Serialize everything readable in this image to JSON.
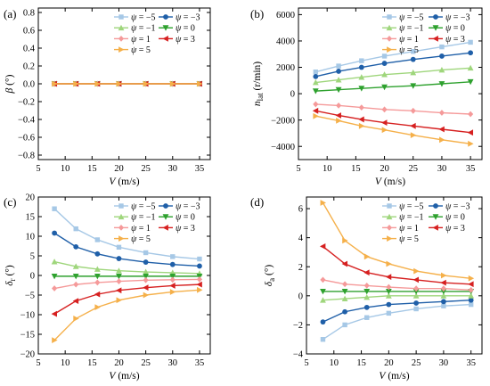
{
  "figure": {
    "x_values": [
      8,
      12,
      16,
      20,
      25,
      30,
      35
    ],
    "series_style": [
      {
        "name": "ψ = −5",
        "color": "#a6c8e6",
        "marker": "square"
      },
      {
        "name": "ψ = −3",
        "color": "#1f5fa8",
        "marker": "circle"
      },
      {
        "name": "ψ = −1",
        "color": "#9fd67c",
        "marker": "triangle-up"
      },
      {
        "name": "ψ = 0",
        "color": "#2ea12e",
        "marker": "triangle-down"
      },
      {
        "name": "ψ = 1",
        "color": "#f59a9a",
        "marker": "diamond"
      },
      {
        "name": "ψ = 3",
        "color": "#d62020",
        "marker": "triangle-left"
      },
      {
        "name": "ψ = 5",
        "color": "#f5b04a",
        "marker": "triangle-right"
      }
    ]
  },
  "chart_data": [
    {
      "type": "line",
      "panel": "(a)",
      "ylabel": "β (°)",
      "xlabel": "V (m/s)",
      "xlim": [
        5,
        37
      ],
      "ylim": [
        -0.85,
        0.85
      ],
      "xticks": [
        5,
        10,
        15,
        20,
        25,
        30,
        35
      ],
      "yticks": [
        -0.8,
        -0.6,
        -0.4,
        -0.2,
        0.0,
        0.2,
        0.4,
        0.6,
        0.8
      ],
      "ytick_labels": [
        "−0.8",
        "−0.6",
        "−0.4",
        "−0.2",
        "0.0",
        "0.2",
        "0.4",
        "0.6",
        "0.8"
      ],
      "legend": "top-right, 2 columns",
      "x": [
        8,
        12,
        16,
        20,
        25,
        30,
        35
      ],
      "series": [
        {
          "name": "ψ = −5",
          "values": [
            0,
            0,
            0,
            0,
            0,
            0,
            0
          ]
        },
        {
          "name": "ψ = −3",
          "values": [
            0,
            0,
            0,
            0,
            0,
            0,
            0
          ]
        },
        {
          "name": "ψ = −1",
          "values": [
            0,
            0,
            0,
            0,
            0,
            0,
            0
          ]
        },
        {
          "name": "ψ = 0",
          "values": [
            0,
            0,
            0,
            0,
            0,
            0,
            0
          ]
        },
        {
          "name": "ψ = 1",
          "values": [
            0,
            0,
            0,
            0,
            0,
            0,
            0
          ]
        },
        {
          "name": "ψ = 3",
          "values": [
            0,
            0,
            0,
            0,
            0,
            0,
            0
          ]
        },
        {
          "name": "ψ = 5",
          "values": [
            0,
            0,
            0,
            0,
            0,
            0,
            0
          ]
        }
      ]
    },
    {
      "type": "line",
      "panel": "(b)",
      "ylabel": "n_lat (r/min)",
      "xlabel": "V (m/s)",
      "xlim": [
        5,
        37
      ],
      "ylim": [
        -5000,
        6500
      ],
      "xticks": [
        5,
        10,
        15,
        20,
        25,
        30,
        35
      ],
      "yticks": [
        -4000,
        -2000,
        0,
        2000,
        4000,
        6000
      ],
      "ytick_labels": [
        "−4000",
        "−2000",
        "0",
        "2000",
        "4000",
        "6000"
      ],
      "legend": "top-right, 2 columns",
      "x": [
        8,
        12,
        16,
        20,
        25,
        30,
        35
      ],
      "series": [
        {
          "name": "ψ = −5",
          "values": [
            1650,
            2100,
            2500,
            2850,
            3200,
            3550,
            3900
          ]
        },
        {
          "name": "ψ = −3",
          "values": [
            1300,
            1700,
            2000,
            2300,
            2600,
            2850,
            3100
          ]
        },
        {
          "name": "ψ = −1",
          "values": [
            850,
            1050,
            1250,
            1450,
            1600,
            1800,
            1950
          ]
        },
        {
          "name": "ψ = 0",
          "values": [
            200,
            300,
            400,
            500,
            600,
            750,
            900
          ]
        },
        {
          "name": "ψ = 1",
          "values": [
            -800,
            -900,
            -1050,
            -1200,
            -1300,
            -1450,
            -1550
          ]
        },
        {
          "name": "ψ = 3",
          "values": [
            -1300,
            -1650,
            -1950,
            -2200,
            -2450,
            -2700,
            -2950
          ]
        },
        {
          "name": "ψ = 5",
          "values": [
            -1700,
            -2050,
            -2450,
            -2750,
            -3150,
            -3500,
            -3800
          ]
        }
      ]
    },
    {
      "type": "line",
      "panel": "(c)",
      "ylabel": "δ_r (°)",
      "xlabel": "V (m/s)",
      "xlim": [
        5,
        37
      ],
      "ylim": [
        -20,
        20
      ],
      "xticks": [
        5,
        10,
        15,
        20,
        25,
        30,
        35
      ],
      "yticks": [
        -20,
        -15,
        -10,
        -5,
        0,
        5,
        10,
        15,
        20
      ],
      "ytick_labels": [
        "−20",
        "−15",
        "−10",
        "−5",
        "0",
        "5",
        "10",
        "15",
        "20"
      ],
      "legend": "top-right, 2 columns",
      "x": [
        8,
        12,
        16,
        20,
        25,
        30,
        35
      ],
      "series": [
        {
          "name": "ψ = −5",
          "values": [
            17,
            11.9,
            9.1,
            7.2,
            5.8,
            4.8,
            4.2
          ]
        },
        {
          "name": "ψ = −3",
          "values": [
            10.8,
            7.3,
            5.5,
            4.3,
            3.4,
            2.8,
            2.4
          ]
        },
        {
          "name": "ψ = −1",
          "values": [
            3.5,
            2.3,
            1.6,
            1.2,
            0.9,
            0.7,
            0.5
          ]
        },
        {
          "name": "ψ = 0",
          "values": [
            -0.2,
            -0.2,
            -0.2,
            -0.2,
            -0.2,
            -0.2,
            -0.2
          ]
        },
        {
          "name": "ψ = 1",
          "values": [
            -3.3,
            -2.3,
            -1.8,
            -1.5,
            -1.2,
            -1.1,
            -1.0
          ]
        },
        {
          "name": "ψ = 3",
          "values": [
            -9.8,
            -6.5,
            -4.8,
            -3.8,
            -3.1,
            -2.6,
            -2.3
          ]
        },
        {
          "name": "ψ = 5",
          "values": [
            -16.5,
            -11.0,
            -8.1,
            -6.3,
            -5.0,
            -4.2,
            -3.7
          ]
        }
      ]
    },
    {
      "type": "line",
      "panel": "(d)",
      "ylabel": "δ_a (°)",
      "xlabel": "V (m/s)",
      "xlim": [
        5,
        37
      ],
      "ylim": [
        -4,
        6.8
      ],
      "xticks": [
        5,
        10,
        15,
        20,
        25,
        30,
        35
      ],
      "yticks": [
        -4,
        -2,
        0,
        2,
        4,
        6
      ],
      "ytick_labels": [
        "−4",
        "−2",
        "0",
        "2",
        "4",
        "6"
      ],
      "legend": "top-right, 2 columns",
      "x": [
        8,
        12,
        16,
        20,
        25,
        30,
        35
      ],
      "series": [
        {
          "name": "ψ = −5",
          "values": [
            -3.0,
            -2.0,
            -1.5,
            -1.2,
            -0.9,
            -0.7,
            -0.6
          ]
        },
        {
          "name": "ψ = −3",
          "values": [
            -1.8,
            -1.1,
            -0.8,
            -0.6,
            -0.5,
            -0.4,
            -0.3
          ]
        },
        {
          "name": "ψ = −1",
          "values": [
            -0.3,
            -0.2,
            -0.1,
            0.0,
            0.0,
            0.0,
            0.0
          ]
        },
        {
          "name": "ψ = 0",
          "values": [
            0.3,
            0.3,
            0.3,
            0.3,
            0.3,
            0.3,
            0.3
          ]
        },
        {
          "name": "ψ = 1",
          "values": [
            1.1,
            0.8,
            0.7,
            0.6,
            0.5,
            0.5,
            0.4
          ]
        },
        {
          "name": "ψ = 3",
          "values": [
            3.4,
            2.2,
            1.6,
            1.3,
            1.1,
            0.9,
            0.8
          ]
        },
        {
          "name": "ψ = 5",
          "values": [
            6.4,
            3.8,
            2.7,
            2.2,
            1.7,
            1.4,
            1.2
          ]
        }
      ]
    }
  ]
}
